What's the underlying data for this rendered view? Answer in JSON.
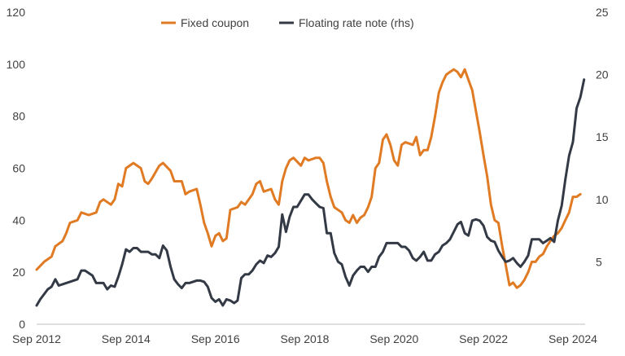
{
  "chart_data": {
    "type": "line",
    "title": "",
    "xlabel": "",
    "ylabel": "",
    "y2label": "",
    "ylim": [
      0,
      120
    ],
    "y2lim": [
      0,
      25
    ],
    "yticks": [
      "0",
      "20",
      "40",
      "60",
      "80",
      "100",
      "120"
    ],
    "y2ticks": [
      "",
      "5",
      "10",
      "15",
      "20",
      "25"
    ],
    "xtick_labels": [
      "Sep 2012",
      "Sep 2014",
      "Sep 2016",
      "Sep 2018",
      "Sep 2020",
      "Sep 2022",
      "Sep 2024"
    ],
    "grid": false,
    "legend_position": "top-center",
    "series": [
      {
        "name": "Fixed coupon",
        "axis": "left",
        "color": "#E07B24",
        "points": [
          [
            "2012-09",
            21
          ],
          [
            "2012-11",
            24
          ],
          [
            "2013-01",
            26
          ],
          [
            "2013-02",
            30
          ],
          [
            "2013-04",
            32
          ],
          [
            "2013-05",
            35
          ],
          [
            "2013-06",
            39
          ],
          [
            "2013-08",
            40
          ],
          [
            "2013-09",
            43
          ],
          [
            "2013-11",
            42
          ],
          [
            "2014-01",
            43
          ],
          [
            "2014-02",
            47
          ],
          [
            "2014-03",
            48
          ],
          [
            "2014-05",
            46
          ],
          [
            "2014-06",
            48
          ],
          [
            "2014-07",
            54
          ],
          [
            "2014-08",
            53
          ],
          [
            "2014-09",
            60
          ],
          [
            "2014-11",
            62
          ],
          [
            "2015-01",
            60
          ],
          [
            "2015-02",
            55
          ],
          [
            "2015-03",
            54
          ],
          [
            "2015-04",
            56
          ],
          [
            "2015-06",
            61
          ],
          [
            "2015-07",
            62
          ],
          [
            "2015-09",
            59
          ],
          [
            "2015-10",
            55
          ],
          [
            "2015-12",
            55
          ],
          [
            "2016-01",
            50
          ],
          [
            "2016-02",
            51
          ],
          [
            "2016-04",
            52
          ],
          [
            "2016-05",
            46
          ],
          [
            "2016-06",
            39
          ],
          [
            "2016-07",
            35
          ],
          [
            "2016-08",
            30
          ],
          [
            "2016-09",
            34
          ],
          [
            "2016-10",
            35
          ],
          [
            "2016-11",
            32
          ],
          [
            "2016-12",
            33
          ],
          [
            "2017-01",
            44
          ],
          [
            "2017-03",
            45
          ],
          [
            "2017-04",
            47
          ],
          [
            "2017-05",
            46
          ],
          [
            "2017-07",
            50
          ],
          [
            "2017-08",
            54
          ],
          [
            "2017-09",
            55
          ],
          [
            "2017-10",
            51
          ],
          [
            "2017-12",
            52
          ],
          [
            "2018-01",
            48
          ],
          [
            "2018-02",
            46
          ],
          [
            "2018-03",
            55
          ],
          [
            "2018-04",
            60
          ],
          [
            "2018-05",
            63
          ],
          [
            "2018-06",
            64
          ],
          [
            "2018-08",
            61
          ],
          [
            "2018-09",
            64
          ],
          [
            "2018-10",
            63
          ],
          [
            "2018-12",
            64
          ],
          [
            "2019-01",
            64
          ],
          [
            "2019-02",
            62
          ],
          [
            "2019-03",
            55
          ],
          [
            "2019-04",
            49
          ],
          [
            "2019-05",
            45
          ],
          [
            "2019-07",
            43
          ],
          [
            "2019-08",
            40
          ],
          [
            "2019-09",
            39
          ],
          [
            "2019-10",
            42
          ],
          [
            "2019-11",
            39
          ],
          [
            "2019-12",
            41
          ],
          [
            "2020-01",
            42
          ],
          [
            "2020-02",
            45
          ],
          [
            "2020-03",
            49
          ],
          [
            "2020-04",
            60
          ],
          [
            "2020-05",
            62
          ],
          [
            "2020-06",
            71
          ],
          [
            "2020-07",
            73
          ],
          [
            "2020-08",
            69
          ],
          [
            "2020-09",
            63
          ],
          [
            "2020-10",
            61
          ],
          [
            "2020-11",
            69
          ],
          [
            "2020-12",
            70
          ],
          [
            "2021-02",
            69
          ],
          [
            "2021-03",
            72
          ],
          [
            "2021-04",
            65
          ],
          [
            "2021-05",
            67
          ],
          [
            "2021-06",
            67
          ],
          [
            "2021-07",
            72
          ],
          [
            "2021-08",
            80
          ],
          [
            "2021-09",
            89
          ],
          [
            "2021-10",
            93
          ],
          [
            "2021-11",
            96
          ],
          [
            "2021-12",
            97
          ],
          [
            "2022-01",
            98
          ],
          [
            "2022-02",
            97
          ],
          [
            "2022-03",
            95
          ],
          [
            "2022-04",
            98
          ],
          [
            "2022-05",
            94
          ],
          [
            "2022-06",
            90
          ],
          [
            "2022-07",
            82
          ],
          [
            "2022-08",
            74
          ],
          [
            "2022-09",
            65
          ],
          [
            "2022-10",
            57
          ],
          [
            "2022-11",
            46
          ],
          [
            "2022-12",
            40
          ],
          [
            "2023-01",
            39
          ],
          [
            "2023-02",
            30
          ],
          [
            "2023-03",
            23
          ],
          [
            "2023-04",
            15
          ],
          [
            "2023-05",
            16
          ],
          [
            "2023-06",
            14
          ],
          [
            "2023-07",
            15
          ],
          [
            "2023-08",
            17
          ],
          [
            "2023-09",
            20
          ],
          [
            "2023-10",
            24
          ],
          [
            "2023-11",
            24
          ],
          [
            "2023-12",
            26
          ],
          [
            "2024-01",
            27
          ],
          [
            "2024-02",
            30
          ],
          [
            "2024-03",
            32
          ],
          [
            "2024-04",
            34
          ],
          [
            "2024-05",
            35
          ],
          [
            "2024-06",
            37
          ],
          [
            "2024-07",
            40
          ],
          [
            "2024-08",
            43
          ],
          [
            "2024-09",
            49
          ],
          [
            "2024-10",
            49
          ],
          [
            "2024-11",
            50
          ]
        ]
      },
      {
        "name": "Floating rate note (rhs)",
        "axis": "right",
        "color": "#333A45",
        "points": [
          [
            "2012-09",
            1.5
          ],
          [
            "2012-10",
            2.0
          ],
          [
            "2012-12",
            2.8
          ],
          [
            "2013-01",
            3.0
          ],
          [
            "2013-02",
            3.6
          ],
          [
            "2013-03",
            3.1
          ],
          [
            "2013-05",
            3.3
          ],
          [
            "2013-06",
            3.4
          ],
          [
            "2013-08",
            3.6
          ],
          [
            "2013-09",
            4.3
          ],
          [
            "2013-10",
            4.3
          ],
          [
            "2013-12",
            3.9
          ],
          [
            "2014-01",
            3.3
          ],
          [
            "2014-03",
            3.3
          ],
          [
            "2014-04",
            2.8
          ],
          [
            "2014-05",
            3.1
          ],
          [
            "2014-06",
            3.0
          ],
          [
            "2014-07",
            3.8
          ],
          [
            "2014-08",
            4.8
          ],
          [
            "2014-09",
            6.0
          ],
          [
            "2014-10",
            5.8
          ],
          [
            "2014-11",
            6.1
          ],
          [
            "2014-12",
            6.1
          ],
          [
            "2015-01",
            5.8
          ],
          [
            "2015-03",
            5.8
          ],
          [
            "2015-04",
            5.6
          ],
          [
            "2015-05",
            5.6
          ],
          [
            "2015-06",
            5.3
          ],
          [
            "2015-07",
            6.3
          ],
          [
            "2015-08",
            5.9
          ],
          [
            "2015-09",
            4.6
          ],
          [
            "2015-10",
            3.6
          ],
          [
            "2015-11",
            3.2
          ],
          [
            "2015-12",
            2.9
          ],
          [
            "2016-01",
            3.3
          ],
          [
            "2016-02",
            3.3
          ],
          [
            "2016-04",
            3.5
          ],
          [
            "2016-05",
            3.5
          ],
          [
            "2016-06",
            3.4
          ],
          [
            "2016-07",
            3.0
          ],
          [
            "2016-08",
            2.1
          ],
          [
            "2016-09",
            1.8
          ],
          [
            "2016-10",
            2.0
          ],
          [
            "2016-11",
            1.5
          ],
          [
            "2016-12",
            2.0
          ],
          [
            "2017-01",
            1.9
          ],
          [
            "2017-02",
            1.7
          ],
          [
            "2017-03",
            1.9
          ],
          [
            "2017-04",
            3.7
          ],
          [
            "2017-05",
            4.0
          ],
          [
            "2017-06",
            4.0
          ],
          [
            "2017-07",
            4.3
          ],
          [
            "2017-08",
            4.8
          ],
          [
            "2017-09",
            5.1
          ],
          [
            "2017-10",
            4.9
          ],
          [
            "2017-11",
            5.5
          ],
          [
            "2017-12",
            5.4
          ],
          [
            "2018-01",
            5.7
          ],
          [
            "2018-02",
            6.2
          ],
          [
            "2018-03",
            8.8
          ],
          [
            "2018-04",
            7.4
          ],
          [
            "2018-05",
            8.6
          ],
          [
            "2018-06",
            9.4
          ],
          [
            "2018-07",
            9.4
          ],
          [
            "2018-08",
            9.9
          ],
          [
            "2018-09",
            10.4
          ],
          [
            "2018-10",
            10.4
          ],
          [
            "2018-11",
            10.0
          ],
          [
            "2018-12",
            9.7
          ],
          [
            "2019-01",
            9.4
          ],
          [
            "2019-02",
            9.3
          ],
          [
            "2019-03",
            7.3
          ],
          [
            "2019-04",
            7.3
          ],
          [
            "2019-05",
            5.7
          ],
          [
            "2019-06",
            5.0
          ],
          [
            "2019-07",
            4.8
          ],
          [
            "2019-08",
            3.8
          ],
          [
            "2019-09",
            3.1
          ],
          [
            "2019-10",
            3.9
          ],
          [
            "2019-11",
            4.3
          ],
          [
            "2019-12",
            4.6
          ],
          [
            "2020-01",
            4.6
          ],
          [
            "2020-02",
            4.2
          ],
          [
            "2020-03",
            4.6
          ],
          [
            "2020-04",
            4.6
          ],
          [
            "2020-05",
            5.4
          ],
          [
            "2020-06",
            5.8
          ],
          [
            "2020-07",
            6.5
          ],
          [
            "2020-08",
            6.5
          ],
          [
            "2020-10",
            6.5
          ],
          [
            "2020-11",
            6.2
          ],
          [
            "2020-12",
            6.2
          ],
          [
            "2021-01",
            5.9
          ],
          [
            "2021-02",
            5.3
          ],
          [
            "2021-03",
            5.1
          ],
          [
            "2021-04",
            5.4
          ],
          [
            "2021-05",
            5.8
          ],
          [
            "2021-06",
            5.1
          ],
          [
            "2021-07",
            5.1
          ],
          [
            "2021-08",
            5.6
          ],
          [
            "2021-09",
            5.8
          ],
          [
            "2021-10",
            6.3
          ],
          [
            "2021-11",
            6.5
          ],
          [
            "2021-12",
            6.8
          ],
          [
            "2022-01",
            7.4
          ],
          [
            "2022-02",
            8.0
          ],
          [
            "2022-03",
            8.2
          ],
          [
            "2022-04",
            7.3
          ],
          [
            "2022-05",
            7.1
          ],
          [
            "2022-06",
            8.3
          ],
          [
            "2022-07",
            8.4
          ],
          [
            "2022-08",
            8.3
          ],
          [
            "2022-09",
            7.9
          ],
          [
            "2022-10",
            7.0
          ],
          [
            "2022-11",
            6.7
          ],
          [
            "2022-12",
            6.6
          ],
          [
            "2023-01",
            5.9
          ],
          [
            "2023-02",
            5.4
          ],
          [
            "2023-03",
            5.0
          ],
          [
            "2023-04",
            5.1
          ],
          [
            "2023-05",
            5.3
          ],
          [
            "2023-06",
            4.9
          ],
          [
            "2023-07",
            4.6
          ],
          [
            "2023-08",
            5.0
          ],
          [
            "2023-09",
            5.5
          ],
          [
            "2023-10",
            6.8
          ],
          [
            "2023-11",
            6.8
          ],
          [
            "2023-12",
            6.8
          ],
          [
            "2024-01",
            6.5
          ],
          [
            "2024-02",
            6.7
          ],
          [
            "2024-03",
            6.9
          ],
          [
            "2024-04",
            6.6
          ],
          [
            "2024-05",
            8.3
          ],
          [
            "2024-06",
            9.5
          ],
          [
            "2024-07",
            11.6
          ],
          [
            "2024-08",
            13.5
          ],
          [
            "2024-09",
            14.6
          ],
          [
            "2024-10",
            17.3
          ],
          [
            "2024-11",
            18.2
          ],
          [
            "2024-12",
            19.6
          ]
        ]
      }
    ]
  }
}
